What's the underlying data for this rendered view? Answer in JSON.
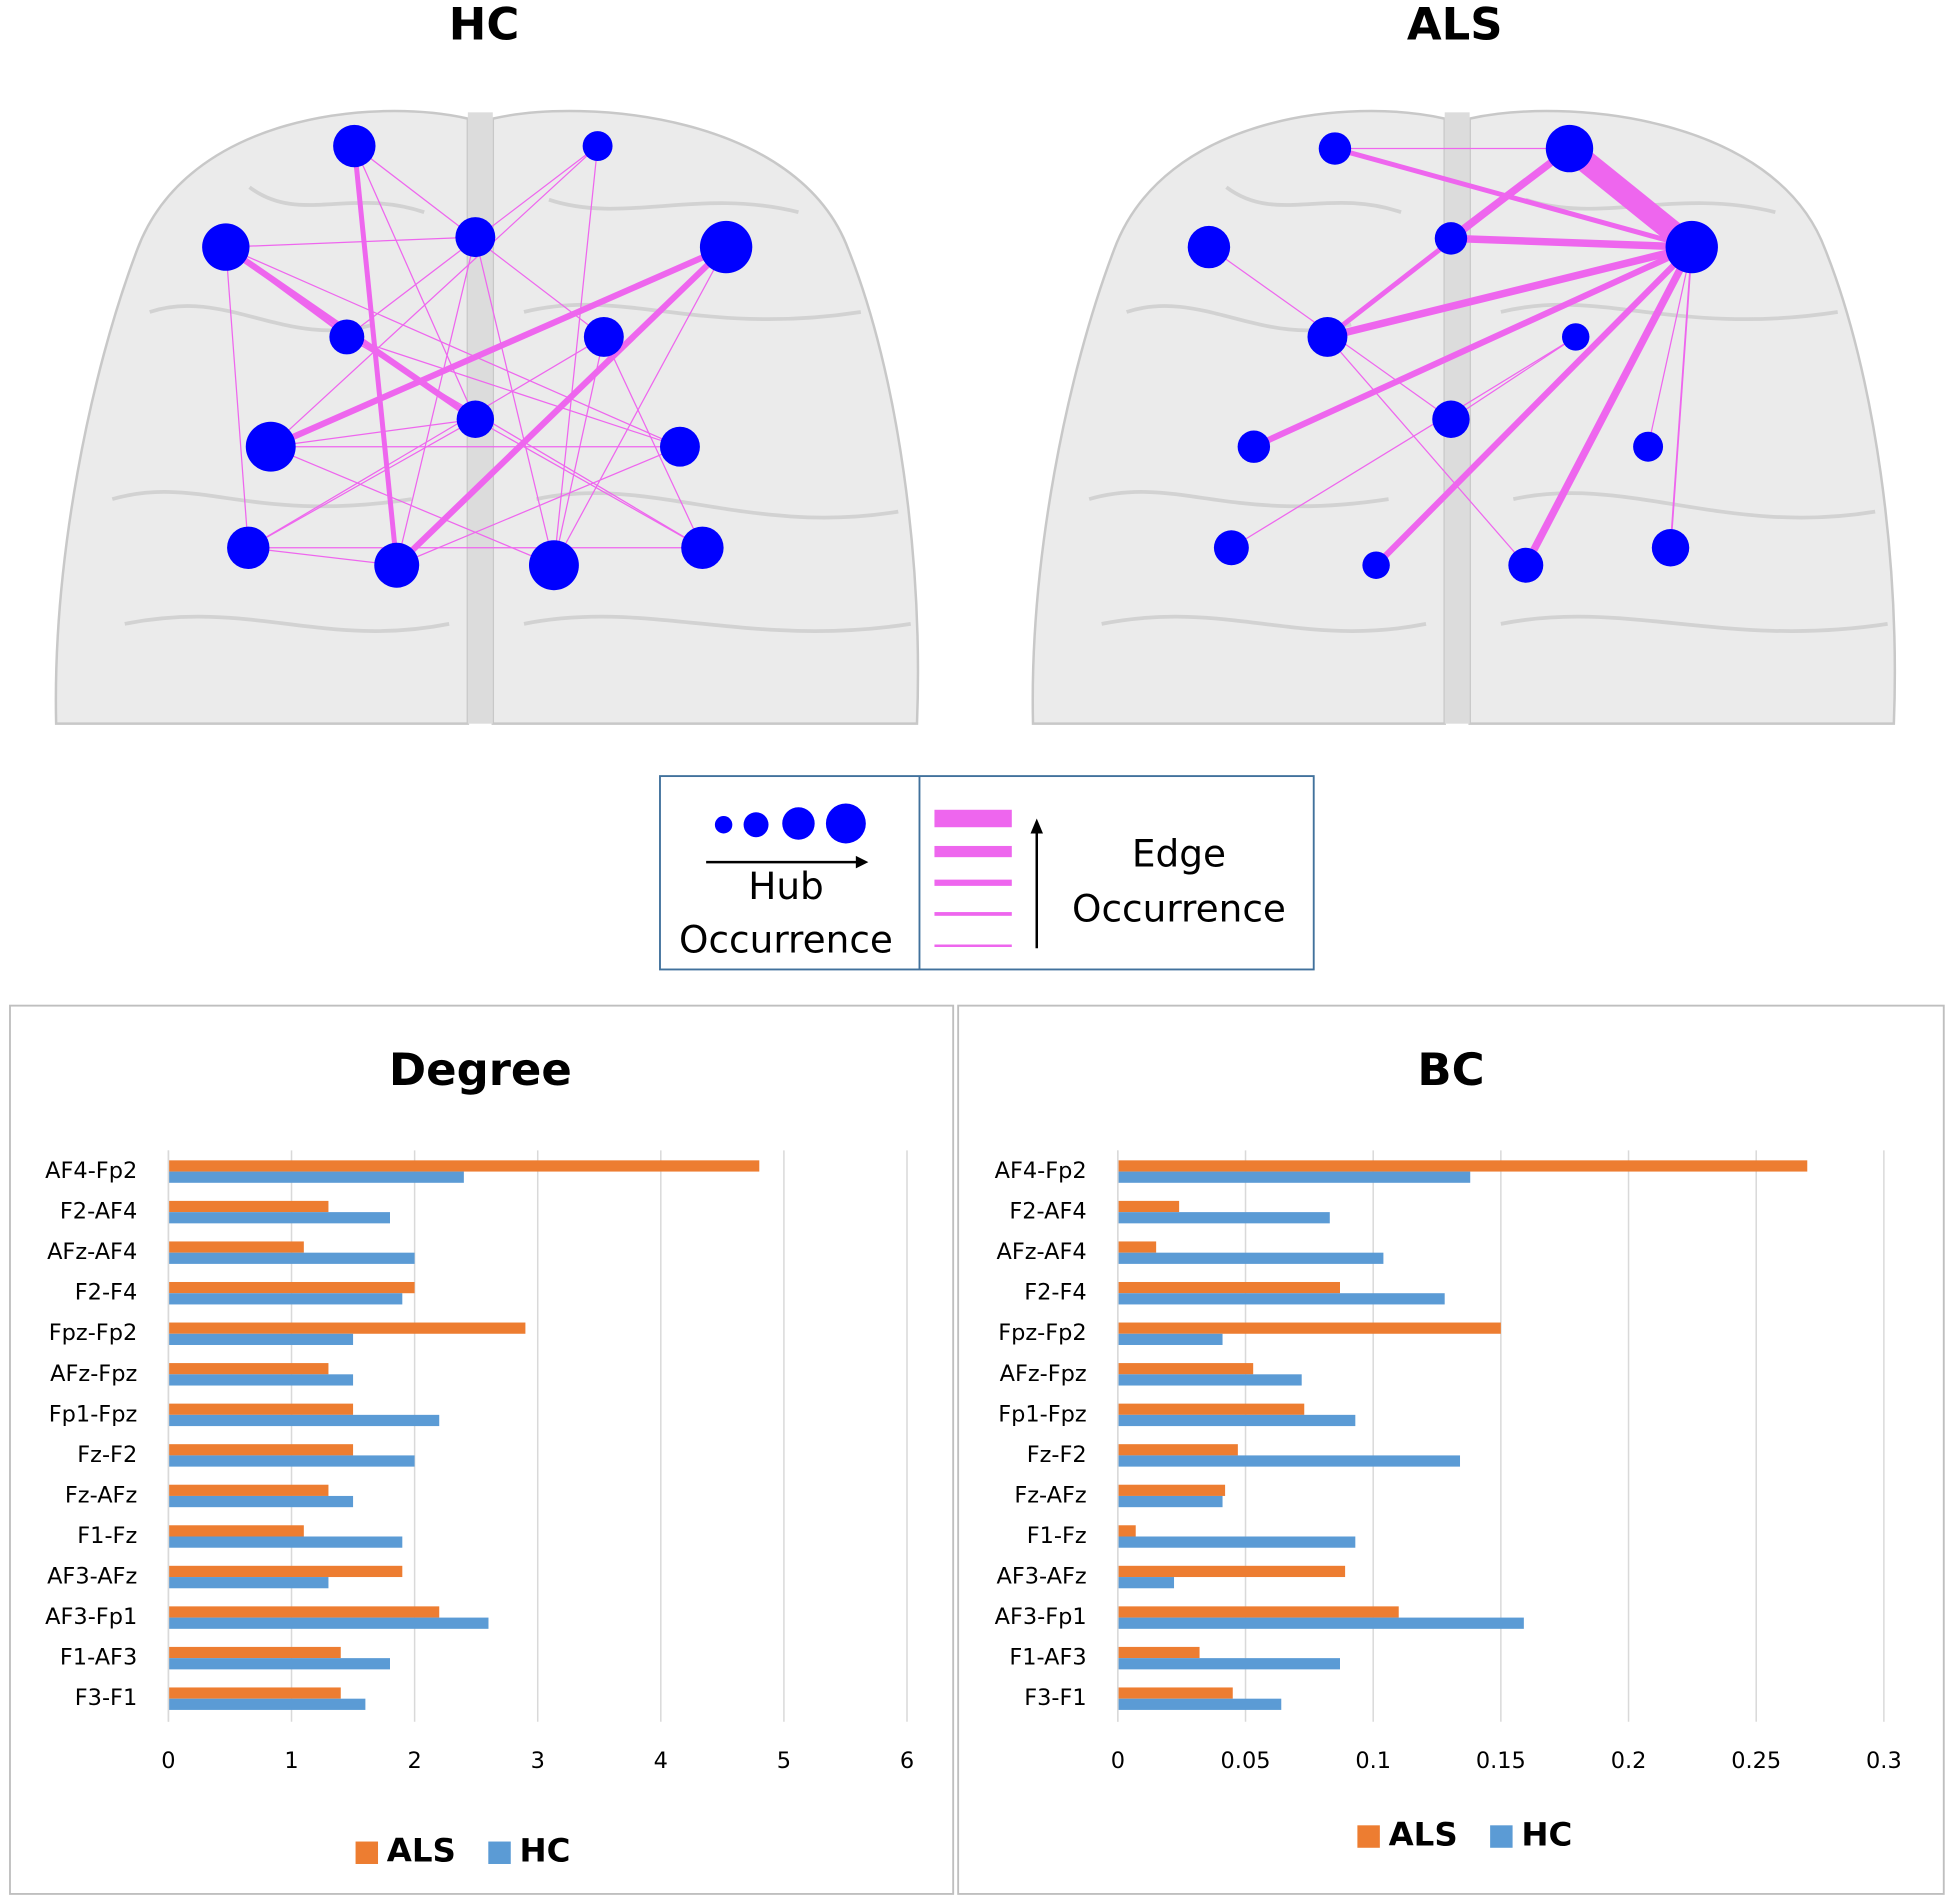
{
  "networks": [
    {
      "title": "HC"
    },
    {
      "title": "ALS"
    }
  ],
  "legend": {
    "hub": [
      "Hub",
      "Occurrence"
    ],
    "edge": [
      "Edge",
      "Occurrence"
    ]
  },
  "chart_data": [
    {
      "type": "bar",
      "orientation": "horizontal",
      "title": "Degree",
      "categories": [
        "AF4-Fp2",
        "F2-AF4",
        "AFz-AF4",
        "F2-F4",
        "Fpz-Fp2",
        "AFz-Fpz",
        "Fp1-Fpz",
        "Fz-F2",
        "Fz-AFz",
        "F1-Fz",
        "AF3-AFz",
        "AF3-Fp1",
        "F1-AF3",
        "F3-F1"
      ],
      "series": [
        {
          "name": "ALS",
          "color": "#ed7d31",
          "values": [
            4.8,
            1.3,
            1.1,
            2.0,
            2.9,
            1.3,
            1.5,
            1.5,
            1.3,
            1.1,
            1.9,
            2.2,
            1.4,
            1.4
          ]
        },
        {
          "name": "HC",
          "color": "#5b9bd5",
          "values": [
            2.4,
            1.8,
            2.0,
            1.9,
            1.5,
            1.5,
            2.2,
            2.0,
            1.5,
            1.9,
            1.3,
            2.6,
            1.8,
            1.6
          ]
        }
      ],
      "xlim": [
        0,
        6
      ],
      "xticks": [
        0,
        1,
        2,
        3,
        4,
        5,
        6
      ],
      "grid": true,
      "legend": "bottom"
    },
    {
      "type": "bar",
      "orientation": "horizontal",
      "title": "BC",
      "categories": [
        "AF4-Fp2",
        "F2-AF4",
        "AFz-AF4",
        "F2-F4",
        "Fpz-Fp2",
        "AFz-Fpz",
        "Fp1-Fpz",
        "Fz-F2",
        "Fz-AFz",
        "F1-Fz",
        "AF3-AFz",
        "AF3-Fp1",
        "F1-AF3",
        "F3-F1"
      ],
      "series": [
        {
          "name": "ALS",
          "color": "#ed7d31",
          "values": [
            0.27,
            0.024,
            0.015,
            0.087,
            0.15,
            0.053,
            0.073,
            0.047,
            0.042,
            0.007,
            0.089,
            0.11,
            0.032,
            0.045
          ]
        },
        {
          "name": "HC",
          "color": "#5b9bd5",
          "values": [
            0.138,
            0.083,
            0.104,
            0.128,
            0.041,
            0.072,
            0.093,
            0.134,
            0.041,
            0.093,
            0.022,
            0.159,
            0.087,
            0.064
          ]
        }
      ],
      "xlim": [
        0,
        0.3
      ],
      "xticks": [
        0,
        0.05,
        0.1,
        0.15,
        0.2,
        0.25,
        0.3
      ],
      "grid": true,
      "legend": "bottom"
    }
  ]
}
